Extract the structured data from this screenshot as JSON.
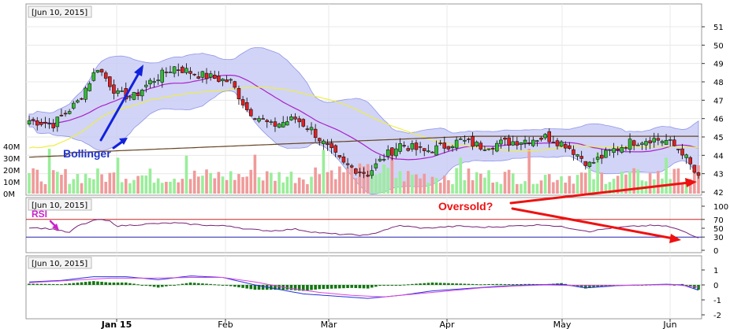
{
  "chart_data": [
    {
      "panel": "price",
      "type": "candlestick",
      "date_label": "[Jun 10, 2015]",
      "y_ticks": [
        "51",
        "50",
        "49",
        "48",
        "47",
        "46",
        "45",
        "44",
        "43",
        "42"
      ],
      "ylim": [
        42,
        51.5
      ],
      "volume_ticks": [
        "40M",
        "30M",
        "20M",
        "10M",
        "0M"
      ],
      "volume_lim": [
        0,
        45
      ],
      "x_ticks": [
        "Jan 15",
        "Feb",
        "Mar",
        "Apr",
        "May",
        "Jun"
      ],
      "annotations": [
        "Bollinger",
        "Oversold?"
      ],
      "colors": {
        "up": "#33bb33",
        "down": "#dd2222",
        "band": "#c9ccf5",
        "mid": "#aa22cc",
        "sma50": "#eeee44",
        "sma200": "#664422",
        "vol_up": "#99ee99",
        "vol_down": "#f09a9a"
      },
      "close_keypoints": [
        [
          0,
          45.9
        ],
        [
          6,
          45.7
        ],
        [
          12,
          46.9
        ],
        [
          17,
          48.8
        ],
        [
          22,
          47.3
        ],
        [
          26,
          47.2
        ],
        [
          30,
          48.0
        ],
        [
          36,
          48.8
        ],
        [
          42,
          48.4
        ],
        [
          46,
          48.2
        ],
        [
          50,
          48.0
        ],
        [
          54,
          46.5
        ],
        [
          60,
          45.6
        ],
        [
          66,
          46.0
        ],
        [
          70,
          45.4
        ],
        [
          74,
          44.4
        ],
        [
          78,
          43.5
        ],
        [
          84,
          43.0
        ],
        [
          88,
          43.9
        ],
        [
          92,
          44.6
        ],
        [
          98,
          44.2
        ],
        [
          103,
          44.5
        ],
        [
          107,
          44.8
        ],
        [
          112,
          44.5
        ],
        [
          118,
          44.7
        ],
        [
          122,
          44.8
        ],
        [
          128,
          45.0
        ],
        [
          133,
          44.6
        ],
        [
          139,
          43.5
        ],
        [
          144,
          44.2
        ],
        [
          149,
          44.7
        ],
        [
          154,
          44.9
        ],
        [
          158,
          44.8
        ],
        [
          162,
          44.2
        ],
        [
          166,
          42.7
        ]
      ]
    },
    {
      "panel": "rsi",
      "type": "line",
      "date_label": "[Jun 10, 2015]",
      "series_label": "RSI",
      "y_ticks": [
        "100",
        "70",
        "50",
        "30",
        "0"
      ],
      "ylim": [
        0,
        100
      ],
      "ref_lines": [
        70,
        30
      ],
      "keypoints": [
        [
          0,
          52
        ],
        [
          6,
          48
        ],
        [
          10,
          40
        ],
        [
          12,
          55
        ],
        [
          17,
          70
        ],
        [
          20,
          66
        ],
        [
          22,
          55
        ],
        [
          30,
          60
        ],
        [
          36,
          62
        ],
        [
          42,
          58
        ],
        [
          46,
          56
        ],
        [
          50,
          55
        ],
        [
          54,
          48
        ],
        [
          60,
          44
        ],
        [
          66,
          48
        ],
        [
          70,
          42
        ],
        [
          74,
          38
        ],
        [
          78,
          36
        ],
        [
          84,
          34
        ],
        [
          88,
          46
        ],
        [
          92,
          56
        ],
        [
          98,
          50
        ],
        [
          103,
          53
        ],
        [
          107,
          55
        ],
        [
          112,
          52
        ],
        [
          118,
          54
        ],
        [
          122,
          56
        ],
        [
          128,
          58
        ],
        [
          133,
          52
        ],
        [
          139,
          43
        ],
        [
          144,
          50
        ],
        [
          149,
          54
        ],
        [
          154,
          56
        ],
        [
          158,
          55
        ],
        [
          162,
          44
        ],
        [
          166,
          29
        ]
      ]
    },
    {
      "panel": "macd",
      "type": "line+bar",
      "date_label": "[Jun 10, 2015]",
      "y_ticks": [
        "1",
        "0",
        "-1",
        "-2"
      ],
      "ylim": [
        -2.1,
        1.3
      ],
      "macd_keypoints": [
        [
          0,
          0.2
        ],
        [
          8,
          0.3
        ],
        [
          16,
          0.55
        ],
        [
          24,
          0.55
        ],
        [
          32,
          0.35
        ],
        [
          40,
          0.6
        ],
        [
          48,
          0.5
        ],
        [
          56,
          0.0
        ],
        [
          62,
          -0.3
        ],
        [
          68,
          -0.6
        ],
        [
          76,
          -0.75
        ],
        [
          84,
          -0.9
        ],
        [
          92,
          -0.7
        ],
        [
          100,
          -0.4
        ],
        [
          108,
          -0.25
        ],
        [
          116,
          -0.1
        ],
        [
          124,
          0.0
        ],
        [
          132,
          0.05
        ],
        [
          138,
          -0.2
        ],
        [
          146,
          -0.05
        ],
        [
          152,
          0.0
        ],
        [
          158,
          0.05
        ],
        [
          162,
          0.0
        ],
        [
          166,
          -0.35
        ]
      ],
      "signal_keypoints": [
        [
          0,
          0.15
        ],
        [
          10,
          0.3
        ],
        [
          20,
          0.45
        ],
        [
          30,
          0.45
        ],
        [
          40,
          0.5
        ],
        [
          48,
          0.5
        ],
        [
          56,
          0.2
        ],
        [
          64,
          -0.2
        ],
        [
          72,
          -0.5
        ],
        [
          80,
          -0.7
        ],
        [
          88,
          -0.8
        ],
        [
          96,
          -0.6
        ],
        [
          104,
          -0.4
        ],
        [
          112,
          -0.2
        ],
        [
          120,
          -0.08
        ],
        [
          128,
          0.0
        ],
        [
          136,
          -0.05
        ],
        [
          144,
          -0.05
        ],
        [
          152,
          0.0
        ],
        [
          160,
          0.02
        ],
        [
          166,
          -0.15
        ]
      ]
    }
  ]
}
